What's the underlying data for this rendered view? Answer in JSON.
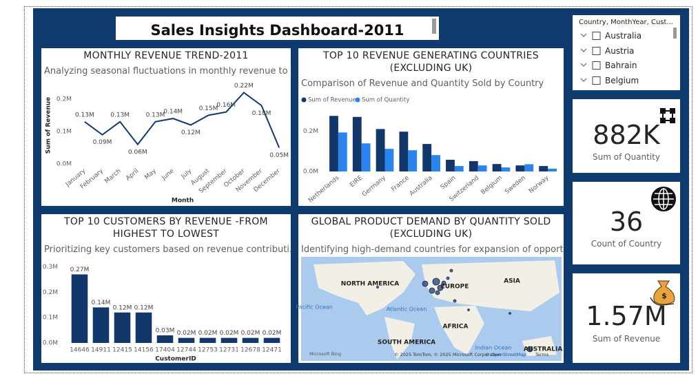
{
  "title": "Sales Insights Dashboard-2011",
  "slicer": {
    "header": "Country, MonthYear, Cust...",
    "items": [
      "Australia",
      "Austria",
      "Bahrain",
      "Belgium"
    ]
  },
  "cards": [
    {
      "value": "882K",
      "label": "Sum of Quantity"
    },
    {
      "value": "36",
      "label": "Count of Country"
    },
    {
      "value": "1.57M",
      "label": "Sum of Revenue"
    }
  ],
  "map": {
    "title": "GLOBAL PRODUCT DEMAND BY QUANTITY SOLD (EXCLUDING UK)",
    "subtitle": "Identifying high-demand countries for expansion of opport...",
    "labels": [
      "NORTH AMERICA",
      "EUROPE",
      "ASIA",
      "Pacific Ocean",
      "Atlantic Ocean",
      "AFRICA",
      "SOUTH AMERICA",
      "Indian Ocean",
      "AUSTRALIA"
    ],
    "attribution": "© 2025 TomTom, © 2025 Microsoft Corporation",
    "osm": "© OpenStreetMap",
    "terms": "Terms",
    "logo": "Microsoft Bing"
  },
  "chart_data": [
    {
      "type": "line",
      "title": "MONTHLY REVENUE TREND-2011",
      "subtitle": "Analyzing seasonal fluctuations in monthly revenue to ...",
      "x_label": "Month",
      "y_label": "Sum of Revenue",
      "categories": [
        "January",
        "February",
        "March",
        "April",
        "May",
        "June",
        "July",
        "August",
        "September",
        "October",
        "November",
        "December"
      ],
      "values": [
        130000,
        90000,
        130000,
        60000,
        130000,
        140000,
        120000,
        150000,
        160000,
        220000,
        180000,
        50000
      ],
      "value_labels": [
        "0.13M",
        "0.09M",
        "0.13M",
        "0.06M",
        "0.13M",
        "0.14M",
        "0.12M",
        "0.15M",
        "0.16M",
        "0.22M",
        "0.18M",
        "0.05M"
      ],
      "color": "#13386e",
      "ylim": [
        0,
        240000
      ],
      "yticks": [
        {
          "value": 0,
          "label": "0.0M"
        },
        {
          "value": 100000,
          "label": "0.1M"
        },
        {
          "value": 200000,
          "label": "0.2M"
        }
      ],
      "grid": false
    },
    {
      "type": "bar",
      "title": "TOP 10 REVENUE GENERATING COUNTRIES (EXCLUDING UK)",
      "subtitle": "Comparison of Revenue and Quantity Sold by Country",
      "categories": [
        "Netherlands",
        "EIRE",
        "Germany",
        "France",
        "Australia",
        "Spain",
        "Switzerland",
        "Belgium",
        "Sweden",
        "Norway"
      ],
      "series": [
        {
          "name": "Sum of Revenue",
          "color": "#12386b",
          "values": [
            275000,
            270000,
            210000,
            197000,
            136000,
            58000,
            51000,
            37000,
            30000,
            27000
          ]
        },
        {
          "name": "Sum of Quantity",
          "color": "#2b84ee",
          "values": [
            193000,
            139000,
            112000,
            105000,
            81000,
            27000,
            30000,
            20000,
            36000,
            14000
          ]
        }
      ],
      "ylim": [
        0,
        310000
      ],
      "yticks": [
        {
          "value": 0,
          "label": "0.0M"
        },
        {
          "value": 200000,
          "label": "0.2M"
        }
      ],
      "grid": false
    },
    {
      "type": "bar",
      "title": "TOP 10 CUSTOMERS BY REVENUE -FROM HIGHEST TO LOWEST",
      "subtitle": "Prioritizing key customers based on revenue contributi...",
      "x_label": "CustomerID",
      "categories": [
        "14646",
        "14911",
        "12415",
        "14156",
        "17404",
        "12744",
        "12753",
        "12731",
        "12678",
        "12471"
      ],
      "values": [
        270000,
        140000,
        120000,
        120000,
        30000,
        20000,
        20000,
        20000,
        20000,
        20000
      ],
      "value_labels": [
        "0.27M",
        "0.14M",
        "0.12M",
        "0.12M",
        "0.03M",
        "0.02M",
        "0.02M",
        "0.02M",
        "0.02M",
        "0.02M"
      ],
      "color": "#12386b",
      "ylim": [
        0,
        320000
      ],
      "yticks": [
        {
          "value": 0,
          "label": "0.0M"
        },
        {
          "value": 100000,
          "label": "0.1M"
        },
        {
          "value": 200000,
          "label": "0.2M"
        },
        {
          "value": 300000,
          "label": "0.3M"
        }
      ],
      "grid": false
    }
  ]
}
